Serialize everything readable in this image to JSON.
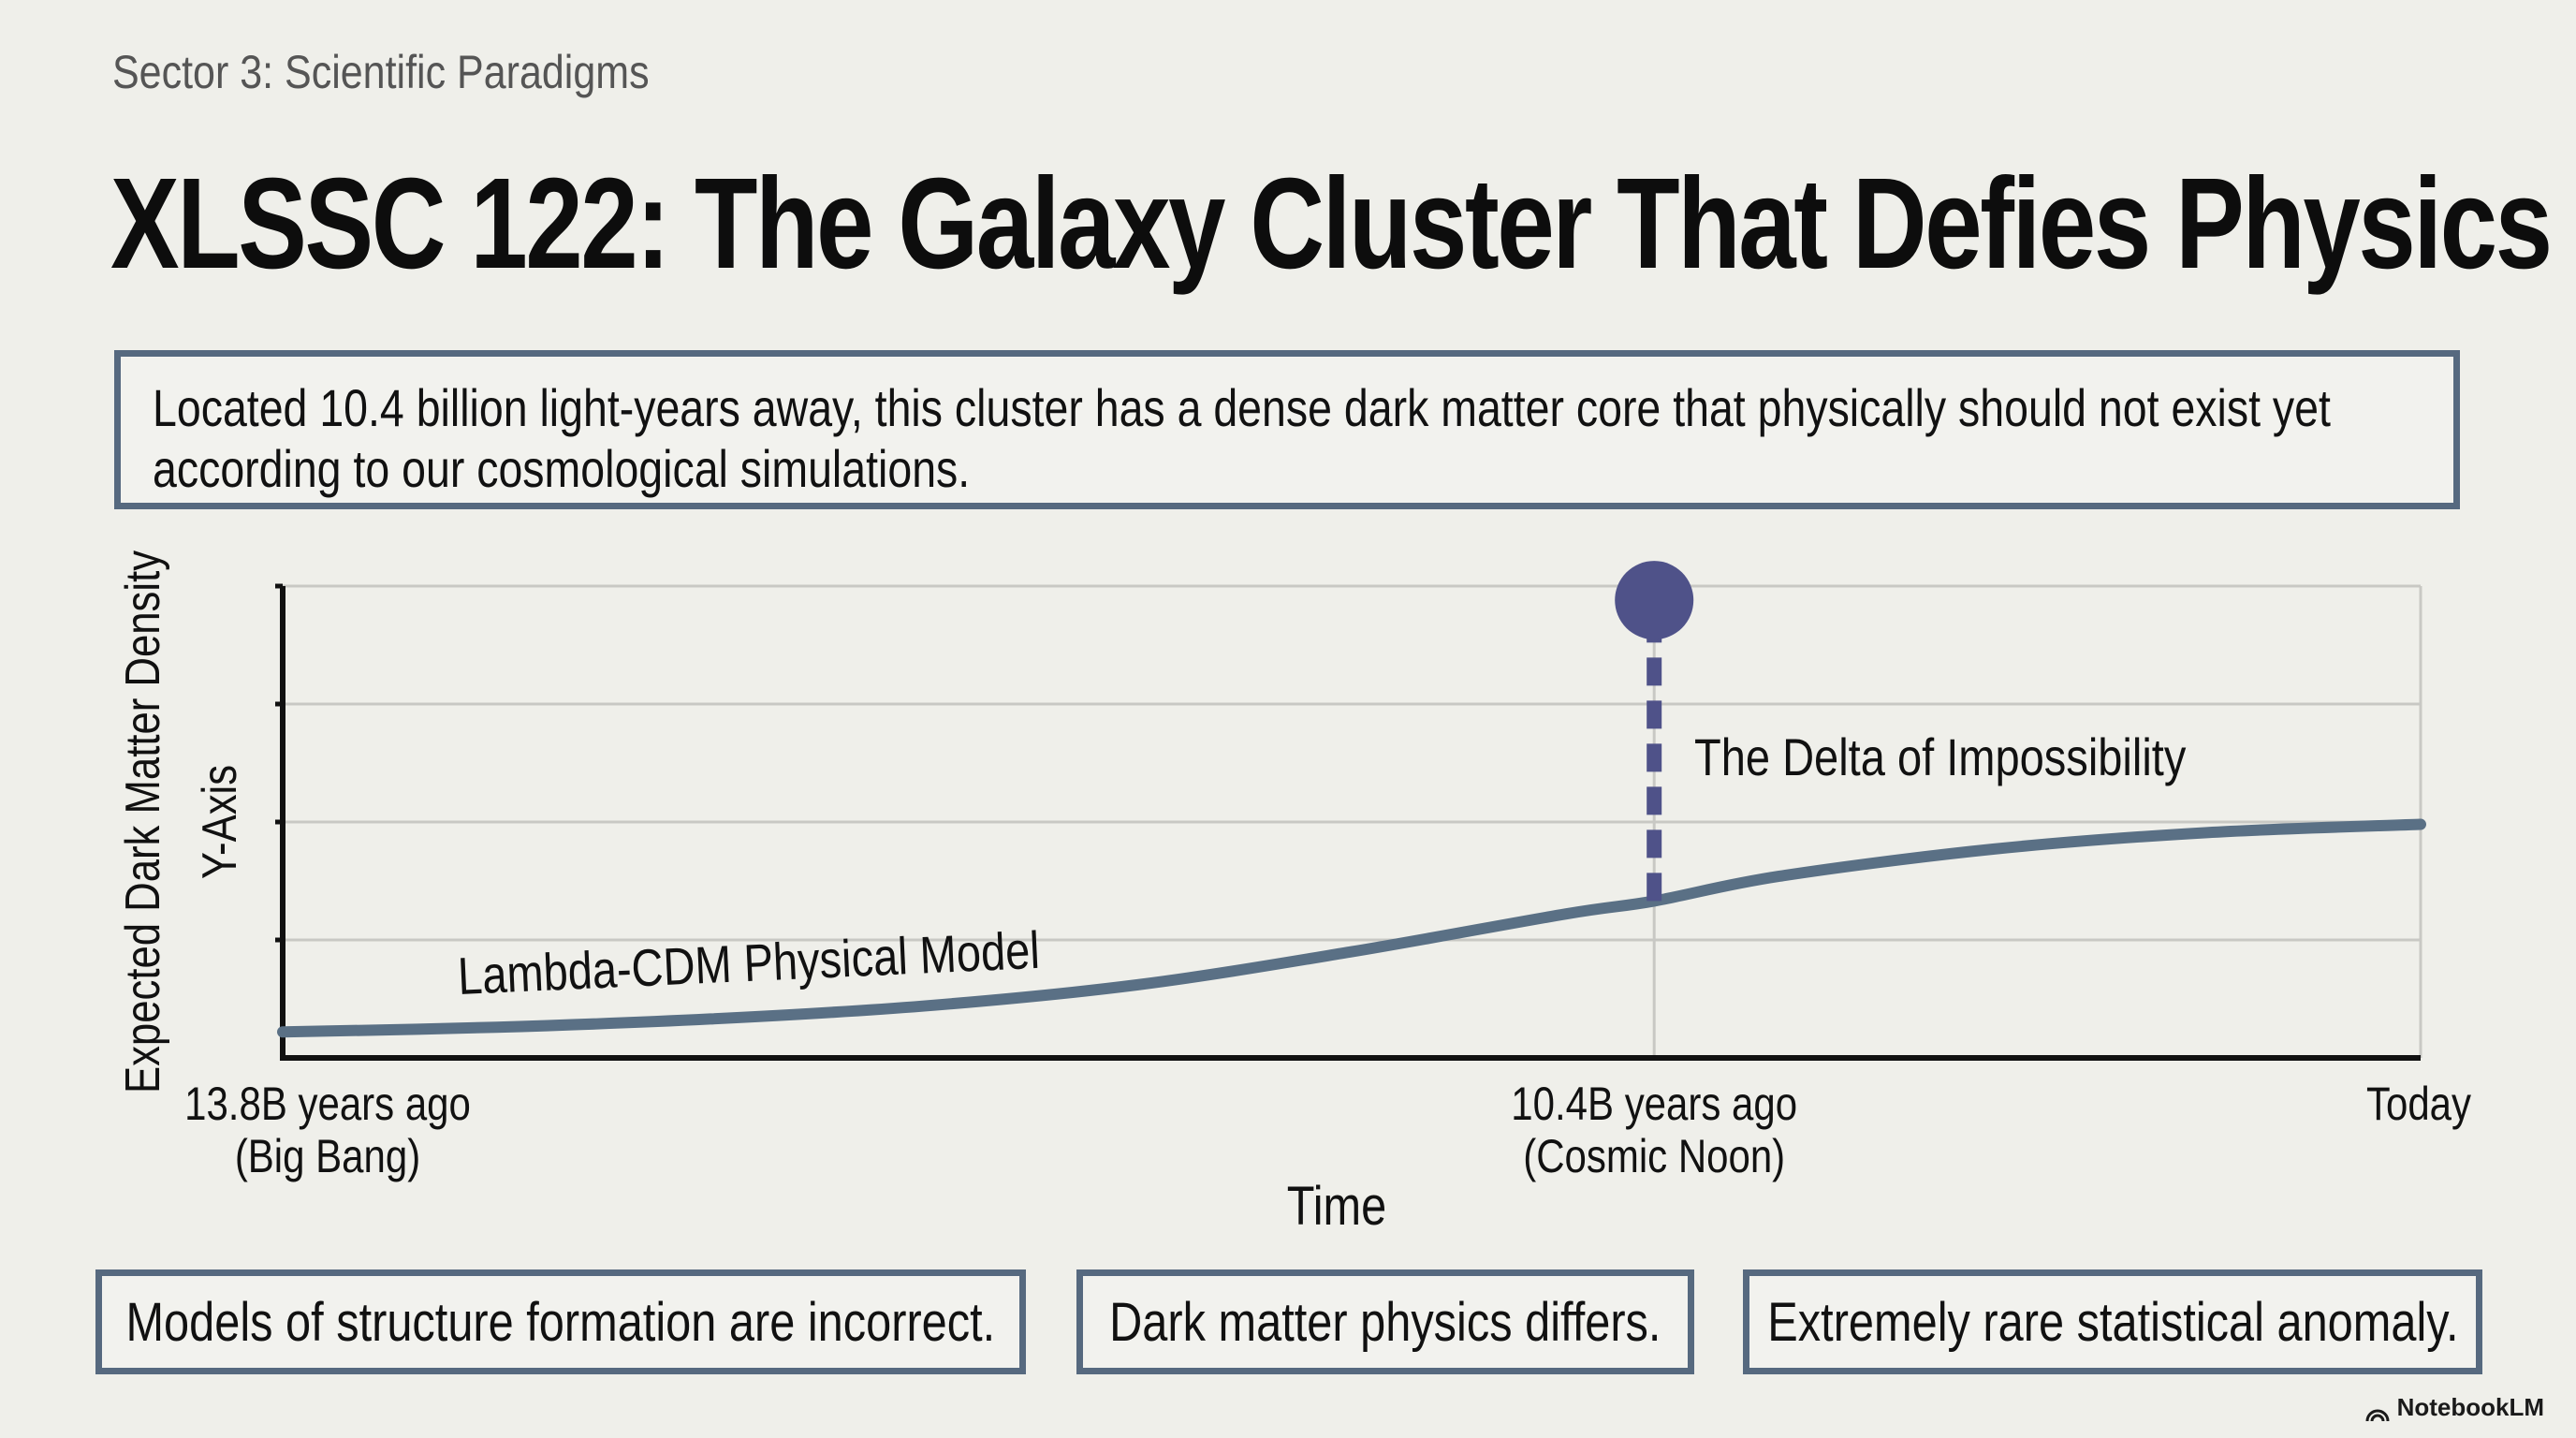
{
  "header": {
    "sector": "Sector 3: Scientific Paradigms",
    "title": "XLSSC 122: The Galaxy Cluster That Defies Physics"
  },
  "intro": {
    "text": "Located 10.4 billion light-years away, this cluster has a dense dark matter core that physically should not exist yet according to our cosmological simulations."
  },
  "chart_data": {
    "type": "line",
    "xlabel": "Time",
    "ylabel": "Expected Dark Matter Density",
    "ylabel_secondary": "Y-Axis",
    "x_ticks": [
      {
        "x": 0,
        "line1": "13.8B years ago",
        "line2": "(Big Bang)"
      },
      {
        "x": 3.4,
        "line1": "10.4B years ago",
        "line2": "(Cosmic Noon)"
      },
      {
        "x": 13.8,
        "line1": "Today",
        "line2": ""
      }
    ],
    "xlim": [
      0,
      5.3
    ],
    "ylim": [
      0,
      4
    ],
    "y_gridlines": [
      1.0,
      2.0,
      3.0,
      4.0
    ],
    "grid": true,
    "series": [
      {
        "name": "Lambda-CDM Physical Model",
        "x": [
          0,
          0.53,
          1.06,
          1.59,
          2.12,
          2.65,
          3.18,
          3.4,
          3.71,
          4.24,
          4.77,
          5.3
        ],
        "y": [
          0.22,
          0.26,
          0.33,
          0.44,
          0.62,
          0.9,
          1.22,
          1.33,
          1.54,
          1.77,
          1.91,
          1.98
        ]
      }
    ],
    "observation": {
      "x": 3.4,
      "y": 3.88,
      "model_y": 1.33,
      "label": "The Delta of Impossibility"
    },
    "colors": {
      "line": "#5a7085",
      "marker": "#4f5289",
      "grid": "#c8c8c4",
      "axis": "#111111"
    }
  },
  "conclusions": [
    "Models of structure formation are incorrect.",
    "Dark matter physics differs.",
    "Extremely rare statistical anomaly."
  ],
  "branding": {
    "name": "NotebookLM",
    "icon": "notebooklm-logo-icon"
  }
}
